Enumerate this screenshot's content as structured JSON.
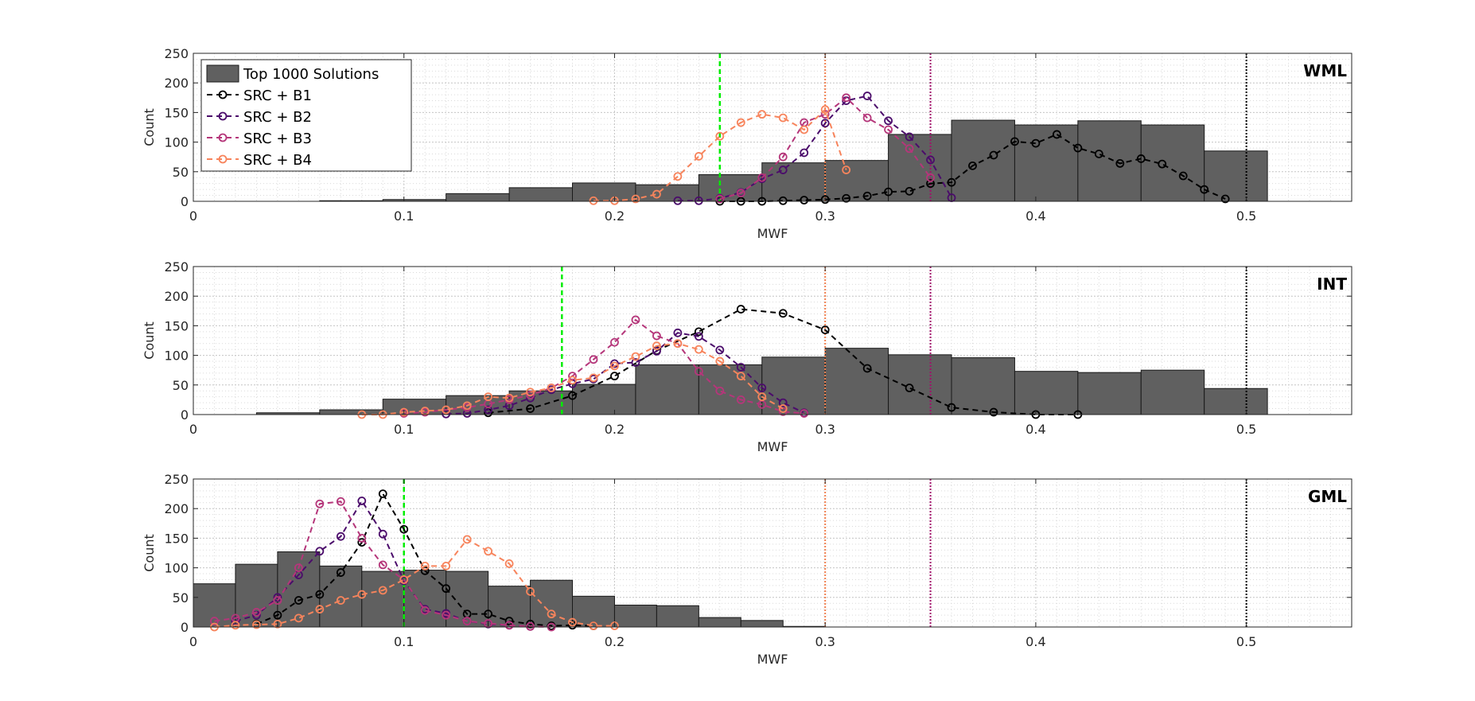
{
  "chart_data": [
    {
      "type": "bar",
      "title": "WML",
      "xlabel": "MWF",
      "ylabel": "Count",
      "xlim": [
        0,
        0.55
      ],
      "ylim": [
        0,
        250
      ],
      "xticks": [
        0,
        0.1,
        0.2,
        0.3,
        0.4,
        0.5
      ],
      "yticks": [
        0,
        50,
        100,
        150,
        200,
        250
      ],
      "grid": true,
      "vlines": [
        {
          "x": 0.25,
          "color": "#00ee00",
          "style": "dashed"
        },
        {
          "x": 0.3,
          "color": "#f08050",
          "style": "dotted"
        },
        {
          "x": 0.35,
          "color": "#a0106a",
          "style": "dotted"
        },
        {
          "x": 0.5,
          "color": "#000000",
          "style": "dotted"
        }
      ],
      "histogram": {
        "name": "Top 1000 Solutions",
        "edges": [
          0.03,
          0.06,
          0.09,
          0.12,
          0.15,
          0.18,
          0.21,
          0.24,
          0.27,
          0.3,
          0.33,
          0.36,
          0.39,
          0.42,
          0.45,
          0.48,
          0.51
        ],
        "counts": [
          0,
          1,
          3,
          13,
          23,
          31,
          28,
          45,
          65,
          69,
          113,
          137,
          129,
          136,
          129,
          85
        ]
      },
      "series": [
        {
          "name": "SRC + B1",
          "color": "#000000",
          "x": [
            0.25,
            0.26,
            0.27,
            0.28,
            0.29,
            0.3,
            0.31,
            0.32,
            0.33,
            0.34,
            0.35,
            0.36,
            0.37,
            0.38,
            0.39,
            0.4,
            0.41,
            0.42,
            0.43,
            0.44,
            0.45,
            0.46,
            0.47,
            0.48,
            0.49
          ],
          "y": [
            0,
            0,
            0,
            1,
            2,
            3,
            5,
            9,
            16,
            17,
            30,
            32,
            60,
            78,
            101,
            98,
            113,
            90,
            80,
            64,
            72,
            63,
            43,
            20,
            4
          ]
        },
        {
          "name": "SRC + B2",
          "color": "#4b0c6b",
          "x": [
            0.23,
            0.24,
            0.25,
            0.26,
            0.27,
            0.28,
            0.29,
            0.3,
            0.31,
            0.32,
            0.33,
            0.34,
            0.35,
            0.36
          ],
          "y": [
            1,
            1,
            5,
            15,
            38,
            53,
            82,
            132,
            170,
            178,
            136,
            109,
            70,
            6
          ]
        },
        {
          "name": "SRC + B3",
          "color": "#b5367a",
          "x": [
            0.25,
            0.26,
            0.27,
            0.28,
            0.29,
            0.3,
            0.31,
            0.32,
            0.33,
            0.34,
            0.35
          ],
          "y": [
            4,
            14,
            40,
            75,
            133,
            147,
            175,
            141,
            121,
            89,
            40
          ]
        },
        {
          "name": "SRC + B4",
          "color": "#f7845c",
          "x": [
            0.19,
            0.2,
            0.21,
            0.22,
            0.23,
            0.24,
            0.25,
            0.26,
            0.27,
            0.28,
            0.29,
            0.3,
            0.31
          ],
          "y": [
            1,
            1,
            4,
            12,
            42,
            76,
            110,
            133,
            147,
            141,
            121,
            155,
            53
          ]
        }
      ]
    },
    {
      "type": "bar",
      "title": "INT",
      "xlabel": "MWF",
      "ylabel": "Count",
      "xlim": [
        0,
        0.55
      ],
      "ylim": [
        0,
        250
      ],
      "xticks": [
        0,
        0.1,
        0.2,
        0.3,
        0.4,
        0.5
      ],
      "yticks": [
        0,
        50,
        100,
        150,
        200,
        250
      ],
      "grid": true,
      "vlines": [
        {
          "x": 0.175,
          "color": "#00ee00",
          "style": "dashed"
        },
        {
          "x": 0.3,
          "color": "#f08050",
          "style": "dotted"
        },
        {
          "x": 0.35,
          "color": "#a0106a",
          "style": "dotted"
        },
        {
          "x": 0.5,
          "color": "#000000",
          "style": "dotted"
        }
      ],
      "histogram": {
        "name": "Top 1000 Solutions",
        "edges": [
          0.03,
          0.06,
          0.09,
          0.12,
          0.15,
          0.18,
          0.21,
          0.24,
          0.27,
          0.3,
          0.33,
          0.36,
          0.39,
          0.42,
          0.45,
          0.48,
          0.51
        ],
        "counts": [
          3,
          8,
          26,
          32,
          40,
          51,
          84,
          84,
          97,
          112,
          101,
          96,
          73,
          71,
          75,
          44
        ]
      },
      "series": [
        {
          "name": "SRC + B1",
          "color": "#000000",
          "x": [
            0.14,
            0.16,
            0.18,
            0.2,
            0.22,
            0.24,
            0.26,
            0.28,
            0.3,
            0.32,
            0.34,
            0.36,
            0.38,
            0.4,
            0.42
          ],
          "y": [
            3,
            10,
            32,
            65,
            108,
            140,
            178,
            171,
            143,
            78,
            45,
            12,
            4,
            0,
            0
          ]
        },
        {
          "name": "SRC + B2",
          "color": "#4b0c6b",
          "x": [
            0.12,
            0.13,
            0.14,
            0.15,
            0.16,
            0.17,
            0.18,
            0.19,
            0.2,
            0.21,
            0.22,
            0.23,
            0.24,
            0.25,
            0.26,
            0.27,
            0.28,
            0.29
          ],
          "y": [
            1,
            2,
            8,
            15,
            28,
            42,
            52,
            60,
            86,
            88,
            107,
            138,
            132,
            109,
            80,
            45,
            20,
            3
          ]
        },
        {
          "name": "SRC + B3",
          "color": "#b5367a",
          "x": [
            0.1,
            0.11,
            0.12,
            0.13,
            0.14,
            0.15,
            0.16,
            0.17,
            0.18,
            0.19,
            0.2,
            0.21,
            0.22,
            0.23,
            0.24,
            0.25,
            0.26,
            0.27,
            0.28,
            0.29
          ],
          "y": [
            2,
            4,
            8,
            12,
            18,
            25,
            33,
            45,
            65,
            93,
            122,
            160,
            133,
            120,
            73,
            40,
            25,
            17,
            5,
            2
          ]
        },
        {
          "name": "SRC + B4",
          "color": "#f7845c",
          "x": [
            0.08,
            0.09,
            0.1,
            0.11,
            0.12,
            0.13,
            0.14,
            0.15,
            0.16,
            0.17,
            0.18,
            0.19,
            0.2,
            0.21,
            0.22,
            0.23,
            0.24,
            0.25,
            0.26,
            0.27,
            0.28
          ],
          "y": [
            0,
            0,
            4,
            6,
            8,
            15,
            30,
            28,
            38,
            45,
            58,
            62,
            82,
            98,
            116,
            120,
            110,
            90,
            65,
            30,
            10
          ]
        }
      ]
    },
    {
      "type": "bar",
      "title": "GML",
      "xlabel": "MWF",
      "ylabel": "Count",
      "xlim": [
        0,
        0.55
      ],
      "ylim": [
        0,
        250
      ],
      "xticks": [
        0,
        0.1,
        0.2,
        0.3,
        0.4,
        0.5
      ],
      "yticks": [
        0,
        50,
        100,
        150,
        200,
        250
      ],
      "grid": true,
      "vlines": [
        {
          "x": 0.1,
          "color": "#00ee00",
          "style": "dashed"
        },
        {
          "x": 0.3,
          "color": "#f08050",
          "style": "dotted"
        },
        {
          "x": 0.35,
          "color": "#a0106a",
          "style": "dotted"
        },
        {
          "x": 0.5,
          "color": "#000000",
          "style": "dotted"
        }
      ],
      "histogram": {
        "name": "Top 1000 Solutions",
        "edges": [
          0.0,
          0.02,
          0.04,
          0.06,
          0.08,
          0.1,
          0.12,
          0.14,
          0.16,
          0.18,
          0.2,
          0.22,
          0.24,
          0.26,
          0.28,
          0.3
        ],
        "counts": [
          73,
          106,
          127,
          103,
          94,
          96,
          94,
          69,
          79,
          52,
          37,
          36,
          16,
          11,
          1
        ]
      },
      "series": [
        {
          "name": "SRC + B1",
          "color": "#000000",
          "x": [
            0.03,
            0.04,
            0.05,
            0.06,
            0.07,
            0.08,
            0.09,
            0.1,
            0.11,
            0.12,
            0.13,
            0.14,
            0.15,
            0.16,
            0.17,
            0.18,
            0.19
          ],
          "y": [
            5,
            20,
            45,
            55,
            92,
            143,
            225,
            165,
            95,
            65,
            22,
            22,
            10,
            5,
            2,
            3,
            2
          ]
        },
        {
          "name": "SRC + B2",
          "color": "#4b0c6b",
          "x": [
            0.02,
            0.03,
            0.04,
            0.05,
            0.06,
            0.07,
            0.08,
            0.09,
            0.1,
            0.11,
            0.12,
            0.13,
            0.14,
            0.15,
            0.16
          ],
          "y": [
            10,
            20,
            50,
            88,
            128,
            153,
            213,
            157,
            78,
            30,
            23,
            10,
            5,
            3,
            1
          ]
        },
        {
          "name": "SRC + B3",
          "color": "#b5367a",
          "x": [
            0.01,
            0.02,
            0.03,
            0.04,
            0.05,
            0.06,
            0.07,
            0.08,
            0.09,
            0.1,
            0.11,
            0.12,
            0.13,
            0.14,
            0.15,
            0.16,
            0.17
          ],
          "y": [
            10,
            15,
            25,
            45,
            100,
            208,
            212,
            150,
            105,
            80,
            28,
            20,
            10,
            6,
            3,
            1,
            0
          ]
        },
        {
          "name": "SRC + B4",
          "color": "#f7845c",
          "x": [
            0.01,
            0.02,
            0.03,
            0.04,
            0.05,
            0.06,
            0.07,
            0.08,
            0.09,
            0.1,
            0.11,
            0.12,
            0.13,
            0.14,
            0.15,
            0.16,
            0.17,
            0.18,
            0.19,
            0.2
          ],
          "y": [
            0,
            3,
            4,
            5,
            15,
            30,
            45,
            55,
            62,
            80,
            103,
            103,
            148,
            128,
            107,
            60,
            22,
            8,
            2,
            2
          ]
        }
      ]
    }
  ],
  "legend": {
    "entries": [
      "Top 1000 Solutions",
      "SRC + B1",
      "SRC + B2",
      "SRC + B3",
      "SRC + B4"
    ]
  },
  "colors": {
    "hist_fill": "#606060",
    "hist_edge": "#1a1a1a",
    "grid": "#d9d9d9",
    "axis": "#262626"
  }
}
